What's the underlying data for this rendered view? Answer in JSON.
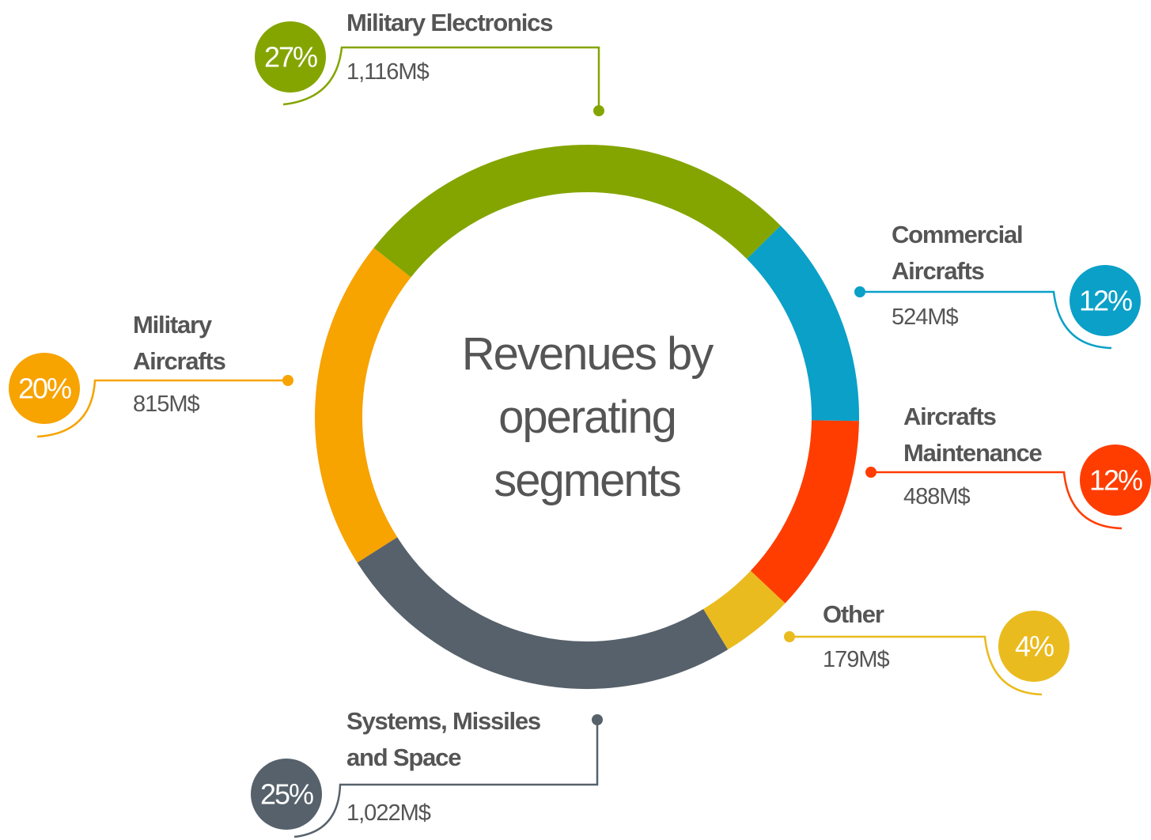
{
  "chart_data": {
    "type": "donut",
    "title": "Revenues by operating segments",
    "categories": [
      "Military Electronics",
      "Commercial Aircrafts",
      "Aircrafts Maintenance",
      "Other",
      "Systems, Missiles and Space",
      "Military Aircrafts"
    ],
    "values": [
      27,
      12,
      12,
      4,
      25,
      20
    ],
    "value_labels": [
      "27%",
      "12%",
      "12%",
      "4%",
      "25%",
      "20%"
    ],
    "amounts": [
      1116,
      524,
      488,
      179,
      1022,
      815
    ],
    "amount_labels": [
      "1,116M$",
      "524M$",
      "488M$",
      "179M$",
      "1,022M$",
      "815M$"
    ],
    "colors": [
      "#84a500",
      "#0aa0c8",
      "#ff3d00",
      "#eabb1f",
      "#56616b",
      "#f7a300"
    ]
  }
}
